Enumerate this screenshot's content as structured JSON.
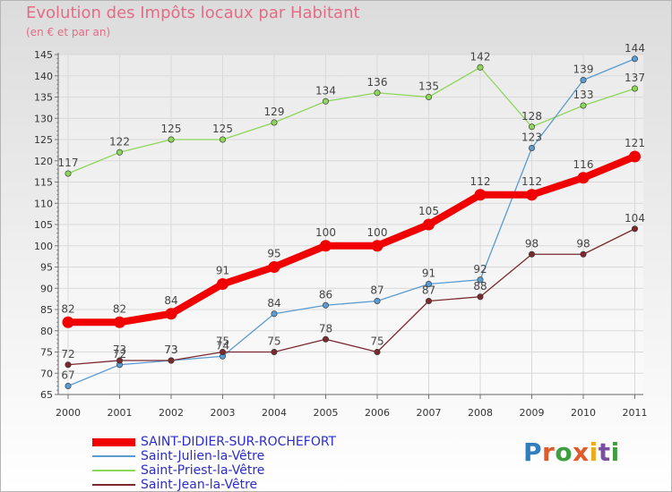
{
  "title": "Evolution des Impôts locaux par Habitant",
  "subtitle": "(en € et par an)",
  "logo": {
    "text": "Proxiti",
    "colors": [
      "#2f7fc0",
      "#e35a2a",
      "#3f9e3f",
      "#e35a2a",
      "#f0a81c",
      "#7a4fa0",
      "#3f9e3f"
    ]
  },
  "chart_data": {
    "type": "line",
    "title": "Evolution des Impôts locaux par Habitant",
    "subtitle": "(en € et par an)",
    "xlabel": "",
    "ylabel": "",
    "x": [
      "2000",
      "2001",
      "2002",
      "2003",
      "2004",
      "2005",
      "2006",
      "2007",
      "2008",
      "2009",
      "2010",
      "2011"
    ],
    "ylim": [
      65,
      145
    ],
    "yticks": [
      65,
      70,
      75,
      80,
      85,
      90,
      95,
      100,
      105,
      110,
      115,
      120,
      125,
      130,
      135,
      140,
      145
    ],
    "grid": true,
    "legend": "bottom-left",
    "series": [
      {
        "name": "Saint-Priest-la-Vêtre",
        "color": "#8ed65a",
        "values": [
          117,
          122,
          125,
          125,
          129,
          134,
          136,
          135,
          142,
          128,
          133,
          137
        ],
        "labels": [
          "117",
          "122",
          "125",
          "125",
          "129",
          "134",
          "136",
          "135",
          "142",
          "128",
          "133",
          "137"
        ]
      },
      {
        "name": "Saint-Julien-la-Vêtre",
        "color": "#5a9bd0",
        "values": [
          67,
          72,
          73,
          74,
          84,
          86,
          87,
          91,
          92,
          123,
          139,
          144
        ],
        "labels": [
          "67",
          "72",
          "73",
          "74",
          "84",
          "86",
          "87",
          "91",
          "92",
          "123",
          "139",
          "144"
        ]
      },
      {
        "name": "Saint-Jean-la-Vêtre",
        "color": "#7a2a2e",
        "values": [
          72,
          73,
          73,
          75,
          75,
          78,
          75,
          87,
          88,
          98,
          98,
          104
        ],
        "labels": [
          "72",
          "73",
          "73",
          "75",
          "75",
          "78",
          "75",
          "87",
          "88",
          "98",
          "98",
          "104"
        ]
      },
      {
        "name": "SAINT-DIDIER-SUR-ROCHEFORT",
        "color": "#f00000",
        "values": [
          82,
          82,
          84,
          91,
          95,
          100,
          100,
          105,
          112,
          112,
          116,
          121
        ],
        "labels": [
          "82",
          "82",
          "84",
          "91",
          "95",
          "100",
          "100",
          "105",
          "112",
          "112",
          "116",
          "121"
        ]
      }
    ],
    "legend_order": [
      "SAINT-DIDIER-SUR-ROCHEFORT",
      "Saint-Julien-la-Vêtre",
      "Saint-Priest-la-Vêtre",
      "Saint-Jean-la-Vêtre"
    ]
  }
}
